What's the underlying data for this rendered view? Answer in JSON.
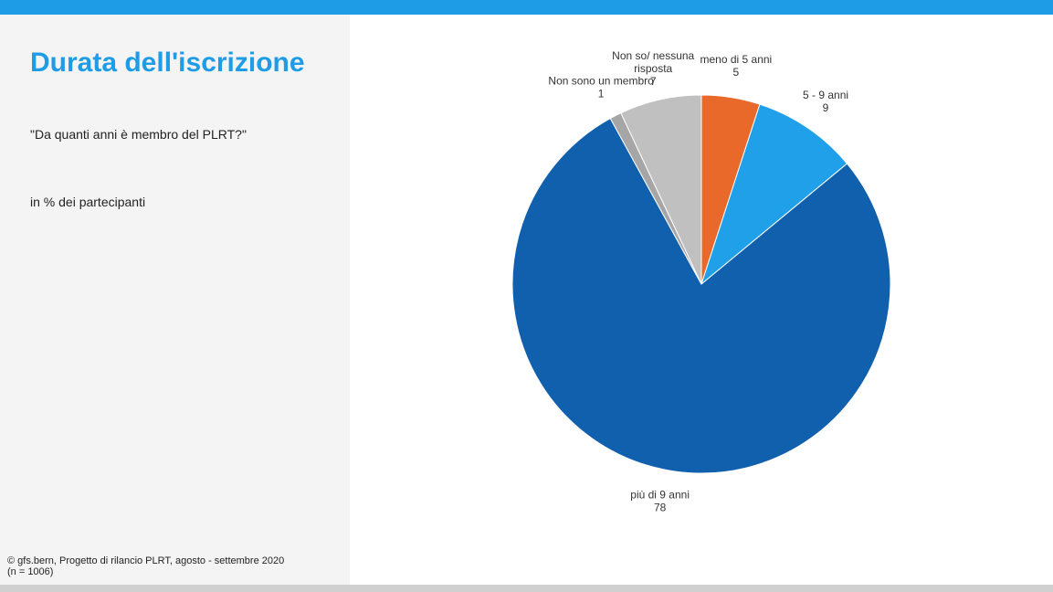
{
  "header": {
    "title": "Durata dell'iscrizione",
    "question": "\"Da quanti anni è membro del PLRT?\"",
    "unit": "in % dei partecipanti"
  },
  "footer": {
    "source": "©  gfs.bern, Progetto di rilancio PLRT, agosto - settembre 2020",
    "sample": "(n = 1006)"
  },
  "colors": {
    "accent": "#1f9ce6",
    "sidebar_bg": "#f4f4f4",
    "bottom_bar": "#d0d0d0"
  },
  "chart_data": {
    "type": "pie",
    "title": "",
    "slices": [
      {
        "label_lines": [
          "meno di 5 anni"
        ],
        "value": 5,
        "color": "#e8692a"
      },
      {
        "label_lines": [
          "5 - 9 anni"
        ],
        "value": 9,
        "color": "#1fa0e8"
      },
      {
        "label_lines": [
          "più di 9 anni"
        ],
        "value": 78,
        "color": "#1060ae"
      },
      {
        "label_lines": [
          "Non sono un membro"
        ],
        "value": 1,
        "color": "#a6a6a6"
      },
      {
        "label_lines": [
          "Non so/ nessuna",
          "risposta"
        ],
        "value": 7,
        "color": "#c0c0c0"
      }
    ],
    "start_angle_deg": 0,
    "direction": "clockwise",
    "data_labels": "outside"
  }
}
